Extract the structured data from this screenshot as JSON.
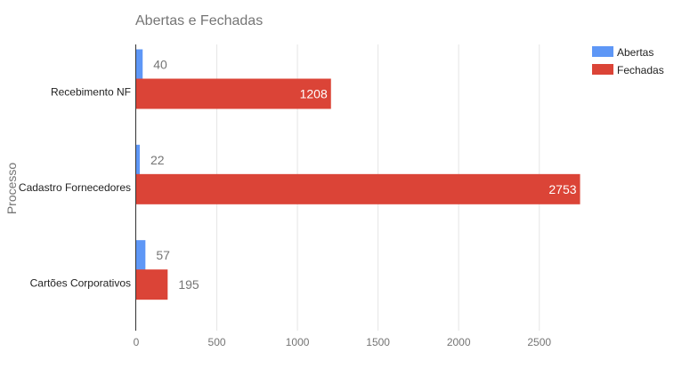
{
  "chart_data": {
    "type": "bar",
    "orientation": "horizontal",
    "title": "Abertas e Fechadas",
    "ylabel": "Processo",
    "xlabel": "",
    "categories": [
      "Recebimento NF",
      "Cadastro Fornecedores",
      "Cartões Corporativos"
    ],
    "series": [
      {
        "name": "Abertas",
        "values": [
          40,
          22,
          57
        ],
        "color": "#5e97f6"
      },
      {
        "name": "Fechadas",
        "values": [
          1208,
          2753,
          195
        ],
        "color": "#db4437"
      }
    ],
    "xlim": [
      0,
      2750
    ],
    "x_ticks": [
      0,
      500,
      1000,
      1500,
      2000,
      2500
    ],
    "grid": true,
    "legend": "top-right",
    "data_labels": true
  }
}
